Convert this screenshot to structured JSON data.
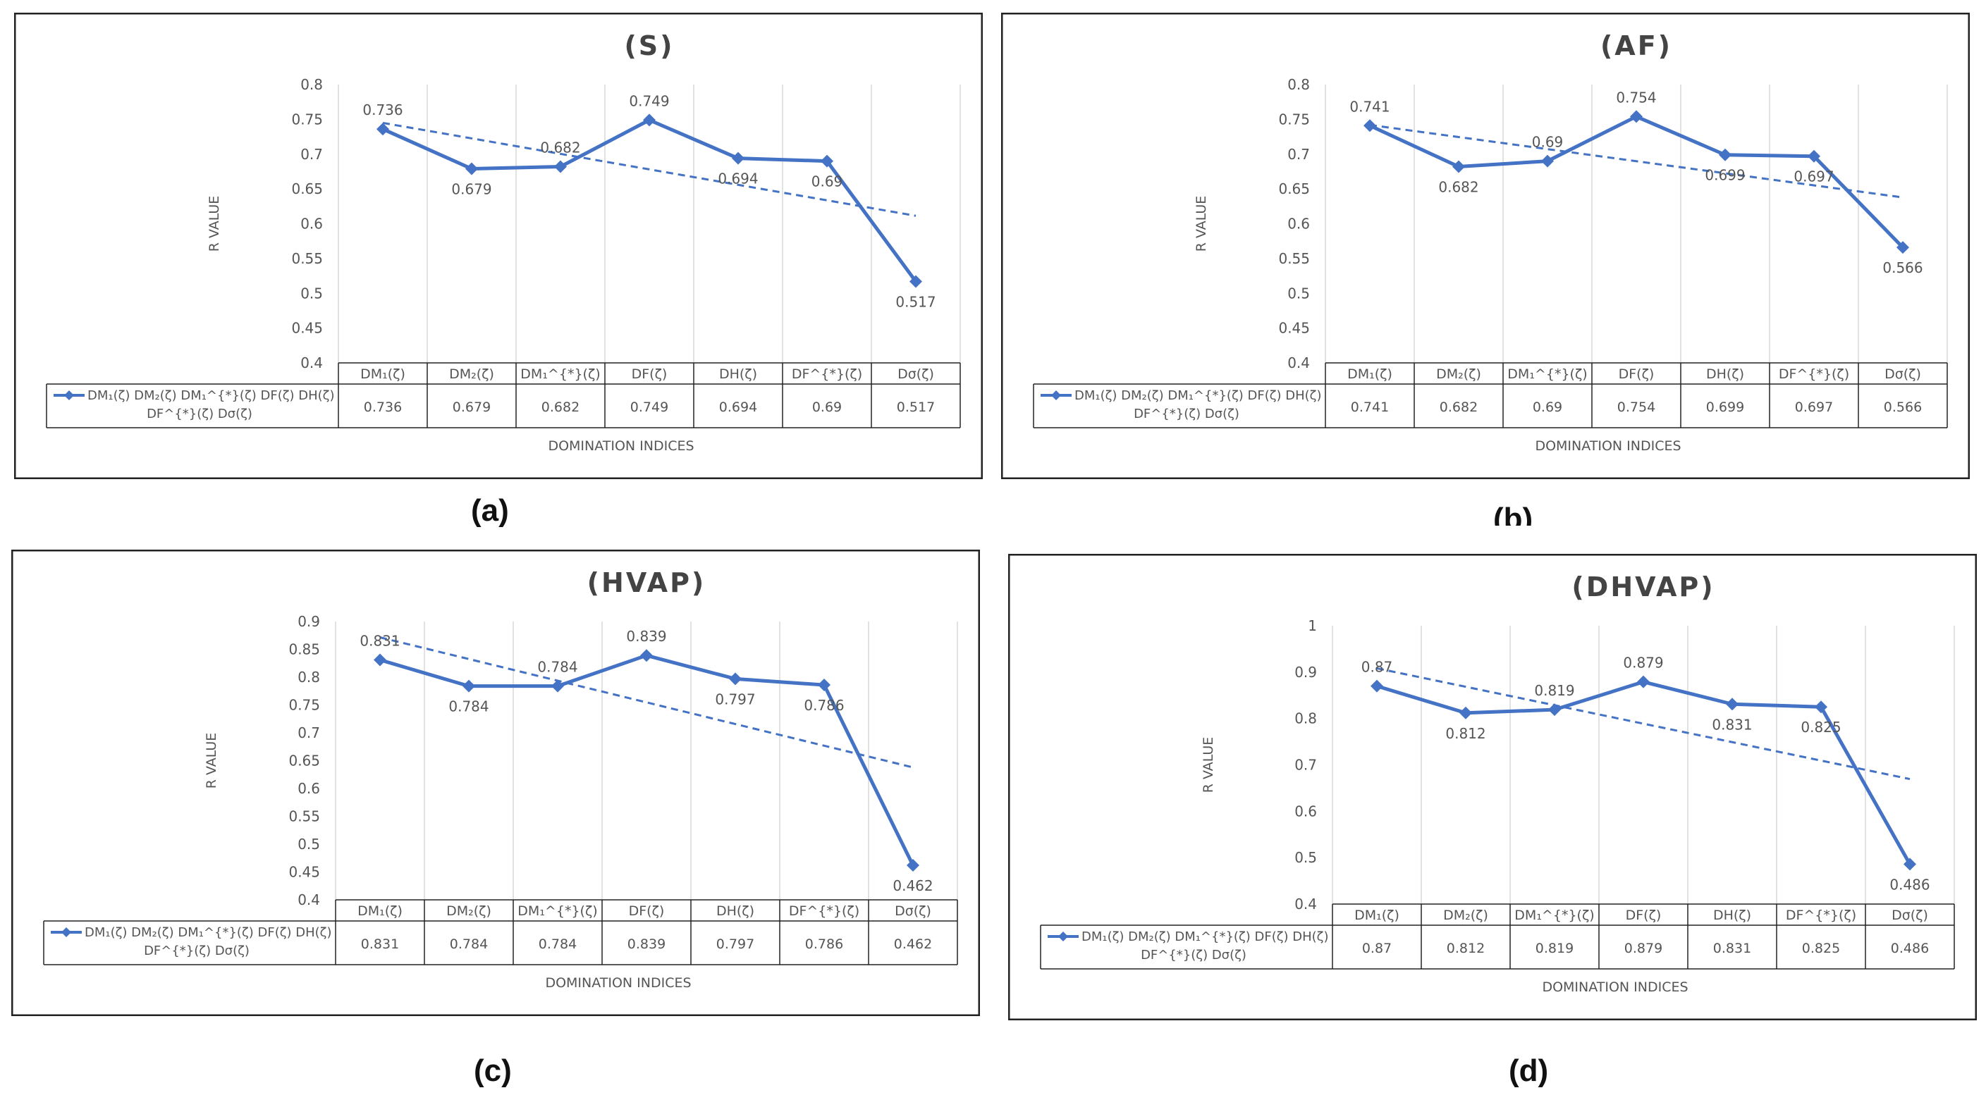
{
  "captions": [
    "(a)",
    "(b)",
    "(c)",
    "(d)"
  ],
  "chart_data": [
    {
      "type": "line",
      "title": "(S)",
      "xlabel": "DOMINATION INDICES",
      "ylabel": "R VALUE",
      "ylim": [
        0.4,
        0.8
      ],
      "yticks": [
        "0.4",
        "0.45",
        "0.5",
        "0.55",
        "0.6",
        "0.65",
        "0.7",
        "0.75",
        "0.8"
      ],
      "categories": [
        "DM₁(ζ)",
        "DM₂(ζ)",
        "DM₁^{*}(ζ)",
        "DF(ζ)",
        "DH(ζ)",
        "DF^{*}(ζ)",
        "Dσ(ζ)"
      ],
      "legend": "DM₁(ζ) DM₂(ζ) DM₁^{*}(ζ) DF(ζ) DH(ζ) DF^{*}(ζ) Dσ(ζ)",
      "values": [
        0.736,
        0.679,
        0.682,
        0.749,
        0.694,
        0.69,
        0.517
      ],
      "labels": [
        "0.736",
        "0.679",
        "0.682",
        "0.749",
        "0.694",
        "0.69",
        "0.517"
      ],
      "trendline": "linear",
      "grid": "vertical",
      "color": "#4472c4"
    },
    {
      "type": "line",
      "title": "(AF)",
      "xlabel": "DOMINATION INDICES",
      "ylabel": "R VALUE",
      "ylim": [
        0.4,
        0.8
      ],
      "yticks": [
        "0.4",
        "0.45",
        "0.5",
        "0.55",
        "0.6",
        "0.65",
        "0.7",
        "0.75",
        "0.8"
      ],
      "categories": [
        "DM₁(ζ)",
        "DM₂(ζ)",
        "DM₁^{*}(ζ)",
        "DF(ζ)",
        "DH(ζ)",
        "DF^{*}(ζ)",
        "Dσ(ζ)"
      ],
      "legend": "DM₁(ζ) DM₂(ζ) DM₁^{*}(ζ) DF(ζ) DH(ζ) DF^{*}(ζ) Dσ(ζ)",
      "values": [
        0.741,
        0.682,
        0.69,
        0.754,
        0.699,
        0.697,
        0.566
      ],
      "labels": [
        "0.741",
        "0.682",
        "0.69",
        "0.754",
        "0.699",
        "0.697",
        "0.566"
      ],
      "trendline": "linear",
      "grid": "vertical",
      "color": "#4472c4"
    },
    {
      "type": "line",
      "title": "(HVAP)",
      "xlabel": "DOMINATION INDICES",
      "ylabel": "R VALUE",
      "ylim": [
        0.4,
        0.9
      ],
      "yticks": [
        "0.4",
        "0.45",
        "0.5",
        "0.55",
        "0.6",
        "0.65",
        "0.7",
        "0.75",
        "0.8",
        "0.85",
        "0.9"
      ],
      "categories": [
        "DM₁(ζ)",
        "DM₂(ζ)",
        "DM₁^{*}(ζ)",
        "DF(ζ)",
        "DH(ζ)",
        "DF^{*}(ζ)",
        "Dσ(ζ)"
      ],
      "legend": "DM₁(ζ) DM₂(ζ) DM₁^{*}(ζ) DF(ζ) DH(ζ) DF^{*}(ζ) Dσ(ζ)",
      "values": [
        0.831,
        0.784,
        0.784,
        0.839,
        0.797,
        0.786,
        0.462
      ],
      "labels": [
        "0.831",
        "0.784",
        "0.784",
        "0.839",
        "0.797",
        "0.786",
        "0.462"
      ],
      "trendline": "linear",
      "grid": "vertical",
      "color": "#4472c4"
    },
    {
      "type": "line",
      "title": "(DHVAP)",
      "xlabel": "DOMINATION INDICES",
      "ylabel": "R VALUE",
      "ylim": [
        0.4,
        1.0
      ],
      "yticks": [
        "0.4",
        "0.5",
        "0.6",
        "0.7",
        "0.8",
        "0.9",
        "1"
      ],
      "categories": [
        "DM₁(ζ)",
        "DM₂(ζ)",
        "DM₁^{*}(ζ)",
        "DF(ζ)",
        "DH(ζ)",
        "DF^{*}(ζ)",
        "Dσ(ζ)"
      ],
      "legend": "DM₁(ζ) DM₂(ζ) DM₁^{*}(ζ) DF(ζ) DH(ζ) DF^{*}(ζ) Dσ(ζ)",
      "values": [
        0.87,
        0.812,
        0.819,
        0.879,
        0.831,
        0.825,
        0.486
      ],
      "labels": [
        "0.87",
        "0.812",
        "0.819",
        "0.879",
        "0.831",
        "0.825",
        "0.486"
      ],
      "trendline": "linear",
      "grid": "vertical",
      "color": "#4472c4"
    }
  ]
}
